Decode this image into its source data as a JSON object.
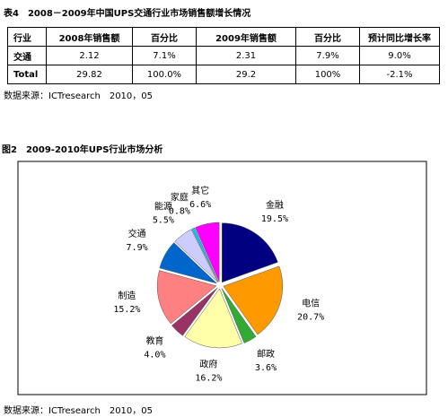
{
  "table_title": "表4　2008－2009年中国UPS交通行业市场销售额增长情况",
  "table": {
    "header": [
      "行业",
      "2008年销售额",
      "百分比",
      "2009年销售额",
      "百分比",
      "预计同比增长率"
    ],
    "rows": [
      [
        "交通",
        "2.12",
        "7.1%",
        "2.31",
        "7.9%",
        "9.0%"
      ],
      [
        "Total",
        "29.82",
        "100.0%",
        "29.2",
        "100%",
        "-2.1%"
      ]
    ]
  },
  "table_source": "数据来源：ICTresearch　2010，05",
  "chart_data": {
    "type": "pie",
    "title": "图2　2009-2010年UPS行业市场分析",
    "categories": [
      "金融",
      "电信",
      "邮政",
      "政府",
      "教育",
      "制造",
      "交通",
      "能源",
      "家庭",
      "其它"
    ],
    "values": [
      19.5,
      20.7,
      3.6,
      16.2,
      4.0,
      15.2,
      7.9,
      5.5,
      0.8,
      6.6
    ],
    "value_labels": [
      "19.5%",
      "20.7%",
      "3.6%",
      "16.2%",
      "4.0%",
      "15.2%",
      "7.9%",
      "5.5%",
      "0.8%",
      "6.6%"
    ],
    "colors": [
      "#000080",
      "#ff9900",
      "#33aa33",
      "#ffffaa",
      "#993366",
      "#ff8080",
      "#0066cc",
      "#ccccff",
      "#00ccff",
      "#ff00ff"
    ]
  },
  "chart_source": "数据来源：ICTresearch　2010，05"
}
